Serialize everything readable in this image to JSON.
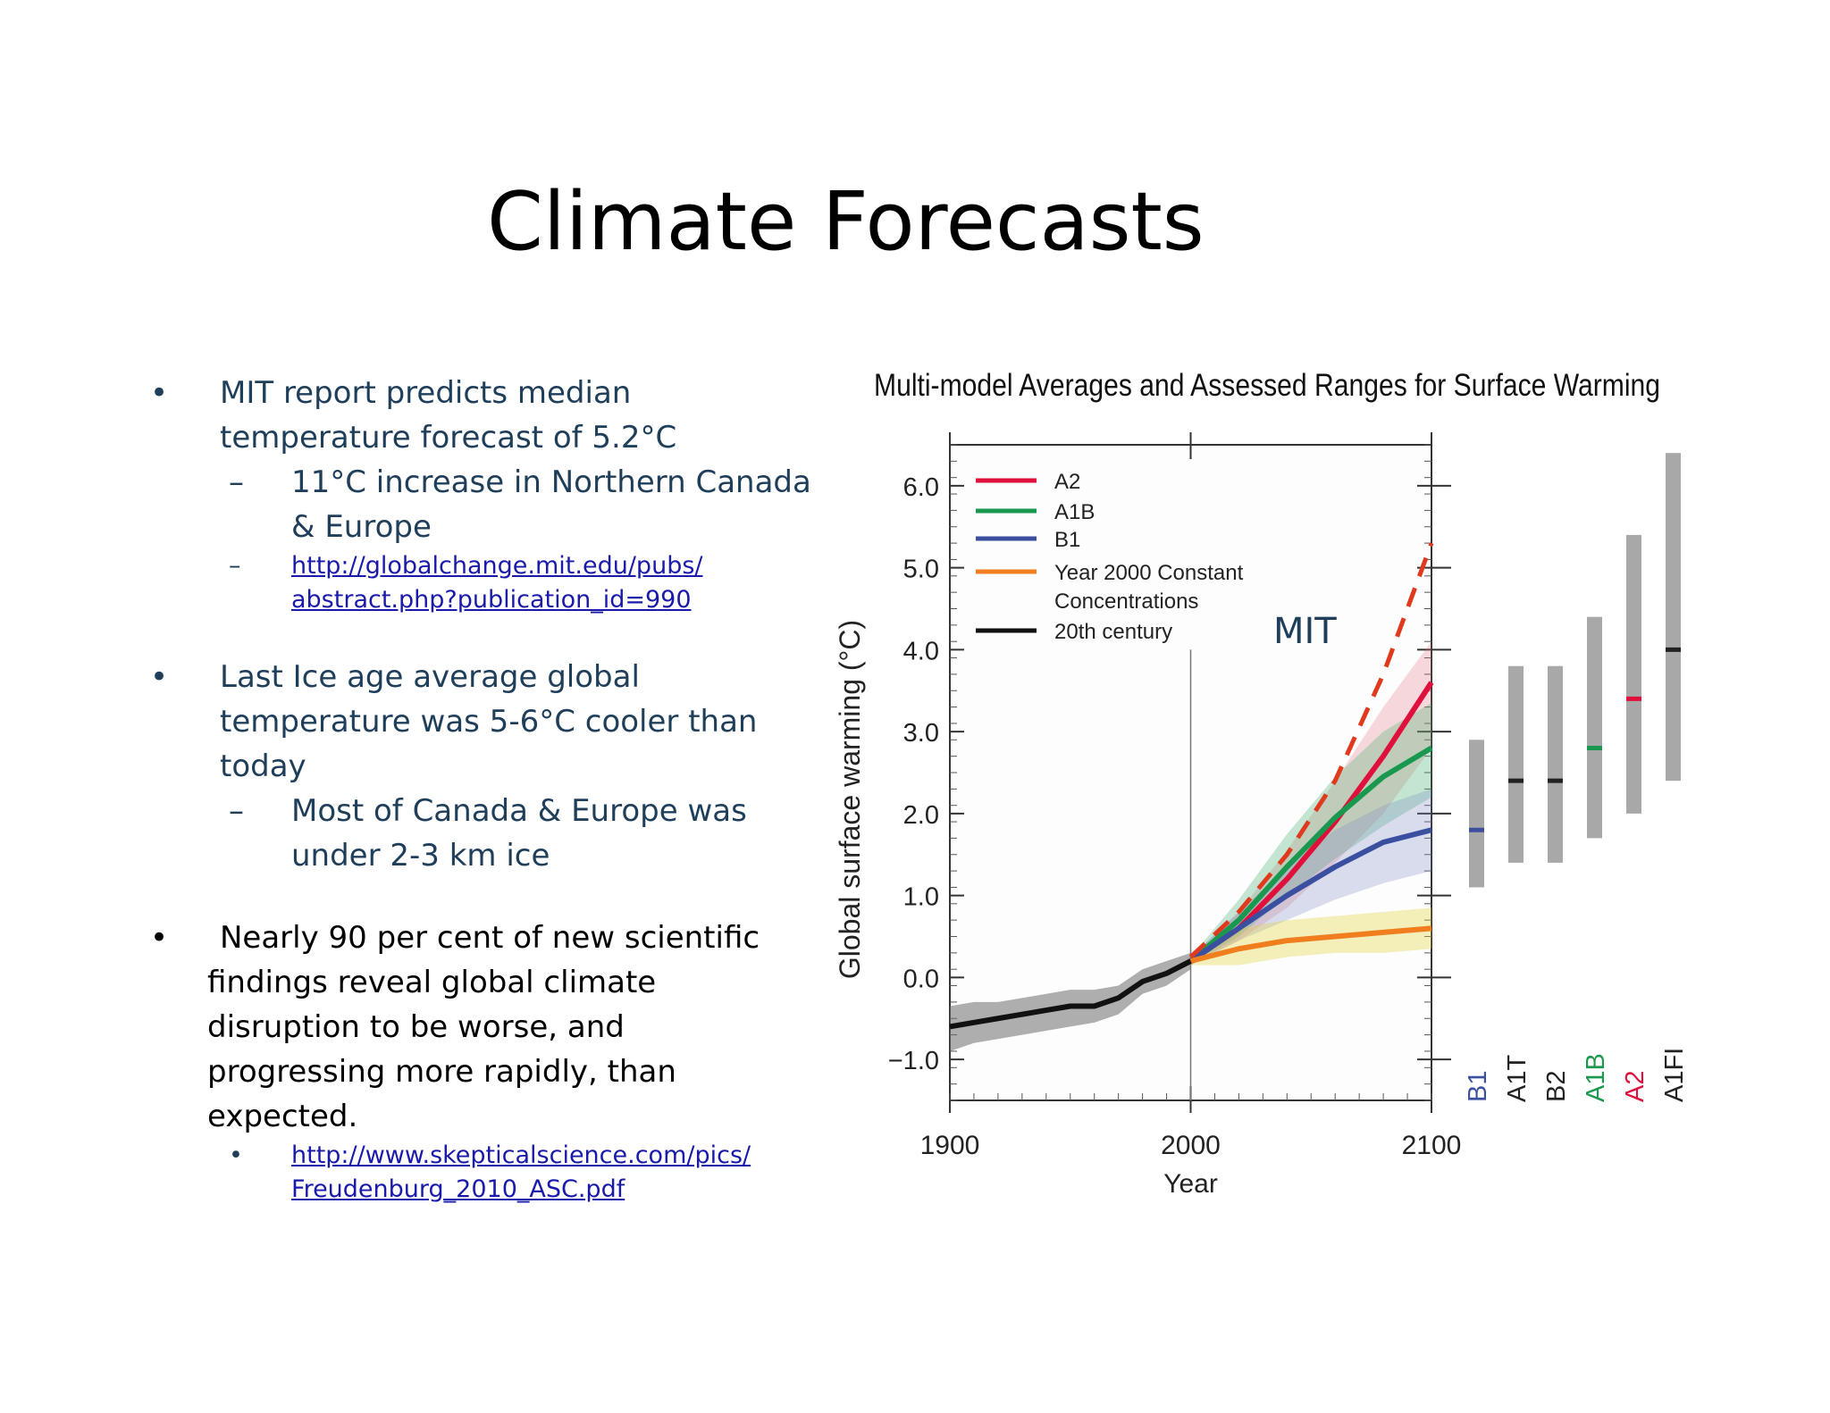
{
  "title": "Climate Forecasts",
  "bullets": [
    {
      "text_lines": [
        "MIT report predicts median",
        "temperature forecast of 5.2°C"
      ],
      "subs": [
        {
          "marker": "–",
          "lines": [
            "11°C increase in Northern Canada",
            "& Europe"
          ]
        },
        {
          "marker": "–",
          "link": "http://globalchange.mit.edu/pubs/abstract.php?publication_id=990",
          "lines": [
            "http://globalchange.mit.edu/pubs/",
            "abstract.php?publication_id=990"
          ]
        }
      ]
    },
    {
      "text_lines": [
        "Last Ice age average global",
        "temperature was 5-6°C cooler than",
        "today"
      ],
      "subs": [
        {
          "marker": "–",
          "lines": [
            "Most of Canada & Europe was",
            "under 2-3 km ice"
          ]
        }
      ]
    },
    {
      "text_lines": [
        "Nearly 90 per cent of new scientific",
        "findings reveal global climate",
        "disruption to be worse, and",
        "progressing more rapidly, than",
        "expected."
      ],
      "subs": [
        {
          "marker": "•",
          "link": "http://www.skepticalscience.com/pics/Freudenburg_2010_ASC.pdf",
          "lines": [
            "http://www.skepticalscience.com/pics/",
            "Freudenburg_2010_ASC.pdf"
          ]
        }
      ]
    }
  ],
  "chart_data": {
    "type": "line",
    "title": "Multi-model Averages and Assessed Ranges for Surface Warming",
    "xlabel": "Year",
    "ylabel": "Global surface warming (°C)",
    "xlim": [
      1900,
      2100
    ],
    "ylim": [
      -1.5,
      6.5
    ],
    "xticks": [
      1900,
      2000,
      2100
    ],
    "yticks": [
      -1.0,
      0.0,
      1.0,
      2.0,
      3.0,
      4.0,
      5.0,
      6.0
    ],
    "ytick_labels": [
      "−1.0",
      "0.0",
      "1.0",
      "2.0",
      "3.0",
      "4.0",
      "5.0",
      "6.0"
    ],
    "annotation": "MIT",
    "series": [
      {
        "name": "A2",
        "color": "#e0103c",
        "x": [
          2000,
          2020,
          2040,
          2060,
          2080,
          2100
        ],
        "y": [
          0.2,
          0.6,
          1.2,
          1.9,
          2.7,
          3.6
        ],
        "band": [
          [
            0.15,
            0.25
          ],
          [
            0.45,
            0.8
          ],
          [
            0.85,
            1.55
          ],
          [
            1.4,
            2.4
          ],
          [
            2.0,
            3.3
          ],
          [
            2.8,
            4.1
          ]
        ]
      },
      {
        "name": "A1B",
        "color": "#1a9850",
        "x": [
          2000,
          2020,
          2040,
          2060,
          2080,
          2100
        ],
        "y": [
          0.2,
          0.7,
          1.35,
          1.95,
          2.45,
          2.8
        ],
        "band": [
          [
            0.15,
            0.25
          ],
          [
            0.5,
            0.95
          ],
          [
            1.0,
            1.75
          ],
          [
            1.45,
            2.45
          ],
          [
            1.85,
            3.0
          ],
          [
            2.2,
            3.35
          ]
        ]
      },
      {
        "name": "B1",
        "color": "#3a4fa0",
        "x": [
          2000,
          2020,
          2040,
          2060,
          2080,
          2100
        ],
        "y": [
          0.2,
          0.6,
          1.0,
          1.35,
          1.65,
          1.8
        ],
        "band": [
          [
            0.15,
            0.25
          ],
          [
            0.45,
            0.8
          ],
          [
            0.7,
            1.35
          ],
          [
            0.95,
            1.8
          ],
          [
            1.15,
            2.1
          ],
          [
            1.3,
            2.3
          ]
        ]
      },
      {
        "name": "Year 2000 Constant Concentrations",
        "color": "#f07e1e",
        "x": [
          2000,
          2020,
          2040,
          2060,
          2080,
          2100
        ],
        "y": [
          0.2,
          0.35,
          0.45,
          0.5,
          0.55,
          0.6
        ],
        "band": [
          [
            0.15,
            0.25
          ],
          [
            0.15,
            0.6
          ],
          [
            0.25,
            0.7
          ],
          [
            0.3,
            0.75
          ],
          [
            0.3,
            0.8
          ],
          [
            0.35,
            0.85
          ]
        ]
      },
      {
        "name": "20th century",
        "color": "#111111",
        "x": [
          1900,
          1910,
          1920,
          1930,
          1940,
          1950,
          1960,
          1970,
          1980,
          1990,
          2000
        ],
        "y": [
          -0.6,
          -0.55,
          -0.5,
          -0.45,
          -0.4,
          -0.35,
          -0.35,
          -0.25,
          -0.05,
          0.05,
          0.2
        ],
        "band": [
          [
            -0.9,
            -0.35
          ],
          [
            -0.8,
            -0.3
          ],
          [
            -0.75,
            -0.3
          ],
          [
            -0.7,
            -0.25
          ],
          [
            -0.65,
            -0.2
          ],
          [
            -0.6,
            -0.15
          ],
          [
            -0.55,
            -0.15
          ],
          [
            -0.45,
            -0.1
          ],
          [
            -0.2,
            0.1
          ],
          [
            -0.1,
            0.2
          ],
          [
            0.1,
            0.3
          ]
        ]
      },
      {
        "name": "MIT",
        "color": "#e03a1e",
        "dashed": true,
        "x": [
          2000,
          2020,
          2040,
          2060,
          2080,
          2100
        ],
        "y": [
          0.25,
          0.8,
          1.5,
          2.4,
          3.7,
          5.3
        ]
      }
    ],
    "ranges": [
      {
        "scenario": "B1",
        "color": "#3a4fa0",
        "low": 1.1,
        "best": 1.8,
        "high": 2.9
      },
      {
        "scenario": "A1T",
        "color": "#222222",
        "low": 1.4,
        "best": 2.4,
        "high": 3.8
      },
      {
        "scenario": "B2",
        "color": "#222222",
        "low": 1.4,
        "best": 2.4,
        "high": 3.8
      },
      {
        "scenario": "A1B",
        "color": "#1a9850",
        "low": 1.7,
        "best": 2.8,
        "high": 4.4
      },
      {
        "scenario": "A2",
        "color": "#e0103c",
        "low": 2.0,
        "best": 3.4,
        "high": 5.4
      },
      {
        "scenario": "A1FI",
        "color": "#222222",
        "low": 2.4,
        "best": 4.0,
        "high": 6.4
      }
    ]
  }
}
